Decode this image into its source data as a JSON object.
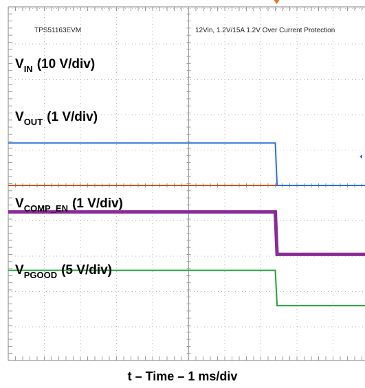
{
  "chart_data": {
    "type": "line",
    "header_left": "TPS51163EVM",
    "header_right": "12Vin, 1.2V/15A 1.2V Over Current Protection",
    "xlabel": "t – Time – 1 ms/div",
    "x_unit": "ms",
    "x": [
      0,
      7.4,
      7.45,
      10.0
    ],
    "series": [
      {
        "main": "V",
        "sub": "IN",
        "scale": "(10 V/div)",
        "color": "#c8551e",
        "level_div": [
          0.0,
          0.0,
          0.0,
          0.0
        ]
      },
      {
        "main": "V",
        "sub": "OUT",
        "scale": "(1 V/div)",
        "color": "#2f6fd1",
        "level_div": [
          1.2,
          1.2,
          0.0,
          0.0
        ]
      },
      {
        "main": "V",
        "sub": "COMP_EN",
        "scale": "(1 V/div)",
        "color": "#8a2b97",
        "level_div": [
          -0.75,
          -0.75,
          -1.95,
          -1.95
        ]
      },
      {
        "main": "V",
        "sub": "PGOOD",
        "scale": "(5 V/div)",
        "color": "#21a23a",
        "level_div": [
          -2.4,
          -2.4,
          -3.4,
          -3.4
        ]
      }
    ]
  }
}
